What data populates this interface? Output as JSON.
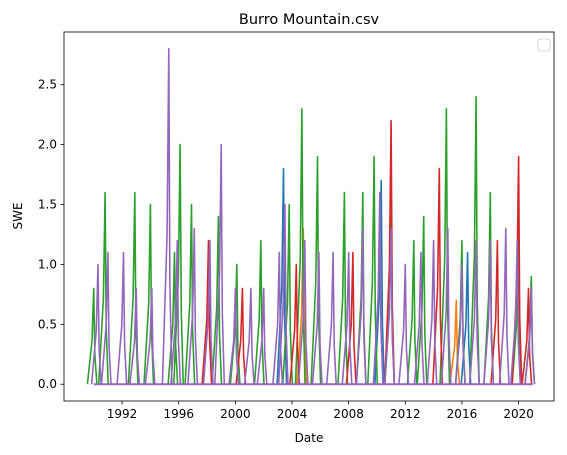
{
  "chart_data": {
    "type": "line",
    "title": "Burro Mountain.csv",
    "xlabel": "Date",
    "ylabel": "SWE",
    "xlim": [
      1987.9,
      2022.5
    ],
    "ylim": [
      -0.14,
      2.94
    ],
    "x_ticks": [
      1992,
      1996,
      2000,
      2004,
      2008,
      2012,
      2016,
      2020
    ],
    "x_tick_labels": [
      "1992",
      "1996",
      "2000",
      "2004",
      "2008",
      "2012",
      "2016",
      "2020"
    ],
    "y_ticks": [
      0.0,
      0.5,
      1.0,
      1.5,
      2.0,
      2.5
    ],
    "y_tick_labels": [
      "0.0",
      "0.5",
      "1.0",
      "1.5",
      "2.0",
      "2.5"
    ],
    "grid": false,
    "legend": {
      "placement": "top-right",
      "entries": []
    },
    "x_unit": "year",
    "series": [
      {
        "color": "#1f77b4",
        "peaks": [
          {
            "x": 2003.4,
            "y": 1.8
          },
          {
            "x": 2010.3,
            "y": 1.7
          },
          {
            "x": 2016.4,
            "y": 1.1
          }
        ]
      },
      {
        "color": "#ff7f0e",
        "peaks": [
          {
            "x": 2004.8,
            "y": 1.3
          },
          {
            "x": 2015.6,
            "y": 0.7
          }
        ]
      },
      {
        "color": "#2ca02c",
        "peaks": [
          {
            "x": 1990.0,
            "y": 0.8
          },
          {
            "x": 1990.8,
            "y": 1.6
          },
          {
            "x": 1992.9,
            "y": 1.6
          },
          {
            "x": 1994.0,
            "y": 1.5
          },
          {
            "x": 1995.7,
            "y": 1.1
          },
          {
            "x": 1996.1,
            "y": 2.0
          },
          {
            "x": 1996.9,
            "y": 1.5
          },
          {
            "x": 1998.8,
            "y": 1.4
          },
          {
            "x": 2000.1,
            "y": 1.0
          },
          {
            "x": 2001.8,
            "y": 1.2
          },
          {
            "x": 2003.8,
            "y": 1.5
          },
          {
            "x": 2004.7,
            "y": 2.3
          },
          {
            "x": 2005.8,
            "y": 1.9
          },
          {
            "x": 2007.7,
            "y": 1.6
          },
          {
            "x": 2009.0,
            "y": 1.6
          },
          {
            "x": 2009.8,
            "y": 1.9
          },
          {
            "x": 2011.0,
            "y": 1.4
          },
          {
            "x": 2012.6,
            "y": 1.2
          },
          {
            "x": 2013.3,
            "y": 1.4
          },
          {
            "x": 2014.9,
            "y": 2.3
          },
          {
            "x": 2016.0,
            "y": 1.2
          },
          {
            "x": 2017.0,
            "y": 2.4
          },
          {
            "x": 2018.0,
            "y": 1.6
          },
          {
            "x": 2020.0,
            "y": 1.2
          },
          {
            "x": 2020.9,
            "y": 0.9
          }
        ]
      },
      {
        "color": "#d62728",
        "peaks": [
          {
            "x": 1998.1,
            "y": 1.2
          },
          {
            "x": 2000.5,
            "y": 0.8
          },
          {
            "x": 2004.3,
            "y": 1.0
          },
          {
            "x": 2008.3,
            "y": 1.1
          },
          {
            "x": 2011.0,
            "y": 2.2
          },
          {
            "x": 2014.4,
            "y": 1.8
          },
          {
            "x": 2018.5,
            "y": 1.2
          },
          {
            "x": 2020.0,
            "y": 1.9
          },
          {
            "x": 2020.7,
            "y": 0.8
          }
        ]
      },
      {
        "color": "#9467bd",
        "peaks": [
          {
            "x": 1990.3,
            "y": 1.0
          },
          {
            "x": 1991.0,
            "y": 1.1
          },
          {
            "x": 1992.1,
            "y": 1.1
          },
          {
            "x": 1993.0,
            "y": 0.8
          },
          {
            "x": 1994.1,
            "y": 0.8
          },
          {
            "x": 1995.3,
            "y": 2.8
          },
          {
            "x": 1995.9,
            "y": 1.2
          },
          {
            "x": 1997.1,
            "y": 1.3
          },
          {
            "x": 1998.2,
            "y": 1.2
          },
          {
            "x": 1999.0,
            "y": 2.0
          },
          {
            "x": 2000.0,
            "y": 0.8
          },
          {
            "x": 2001.1,
            "y": 0.8
          },
          {
            "x": 2002.0,
            "y": 0.8
          },
          {
            "x": 2003.1,
            "y": 1.1
          },
          {
            "x": 2003.5,
            "y": 1.5
          },
          {
            "x": 2004.9,
            "y": 1.2
          },
          {
            "x": 2005.9,
            "y": 1.1
          },
          {
            "x": 2006.9,
            "y": 1.1
          },
          {
            "x": 2008.0,
            "y": 1.1
          },
          {
            "x": 2009.0,
            "y": 1.3
          },
          {
            "x": 2010.2,
            "y": 1.6
          },
          {
            "x": 2011.0,
            "y": 1.3
          },
          {
            "x": 2012.0,
            "y": 1.0
          },
          {
            "x": 2013.1,
            "y": 1.1
          },
          {
            "x": 2014.0,
            "y": 1.2
          },
          {
            "x": 2015.0,
            "y": 1.3
          },
          {
            "x": 2016.0,
            "y": 1.0
          },
          {
            "x": 2017.0,
            "y": 1.2
          },
          {
            "x": 2018.0,
            "y": 1.2
          },
          {
            "x": 2019.1,
            "y": 1.3
          },
          {
            "x": 2019.9,
            "y": 1.2
          },
          {
            "x": 2020.9,
            "y": 0.8
          }
        ]
      }
    ]
  }
}
